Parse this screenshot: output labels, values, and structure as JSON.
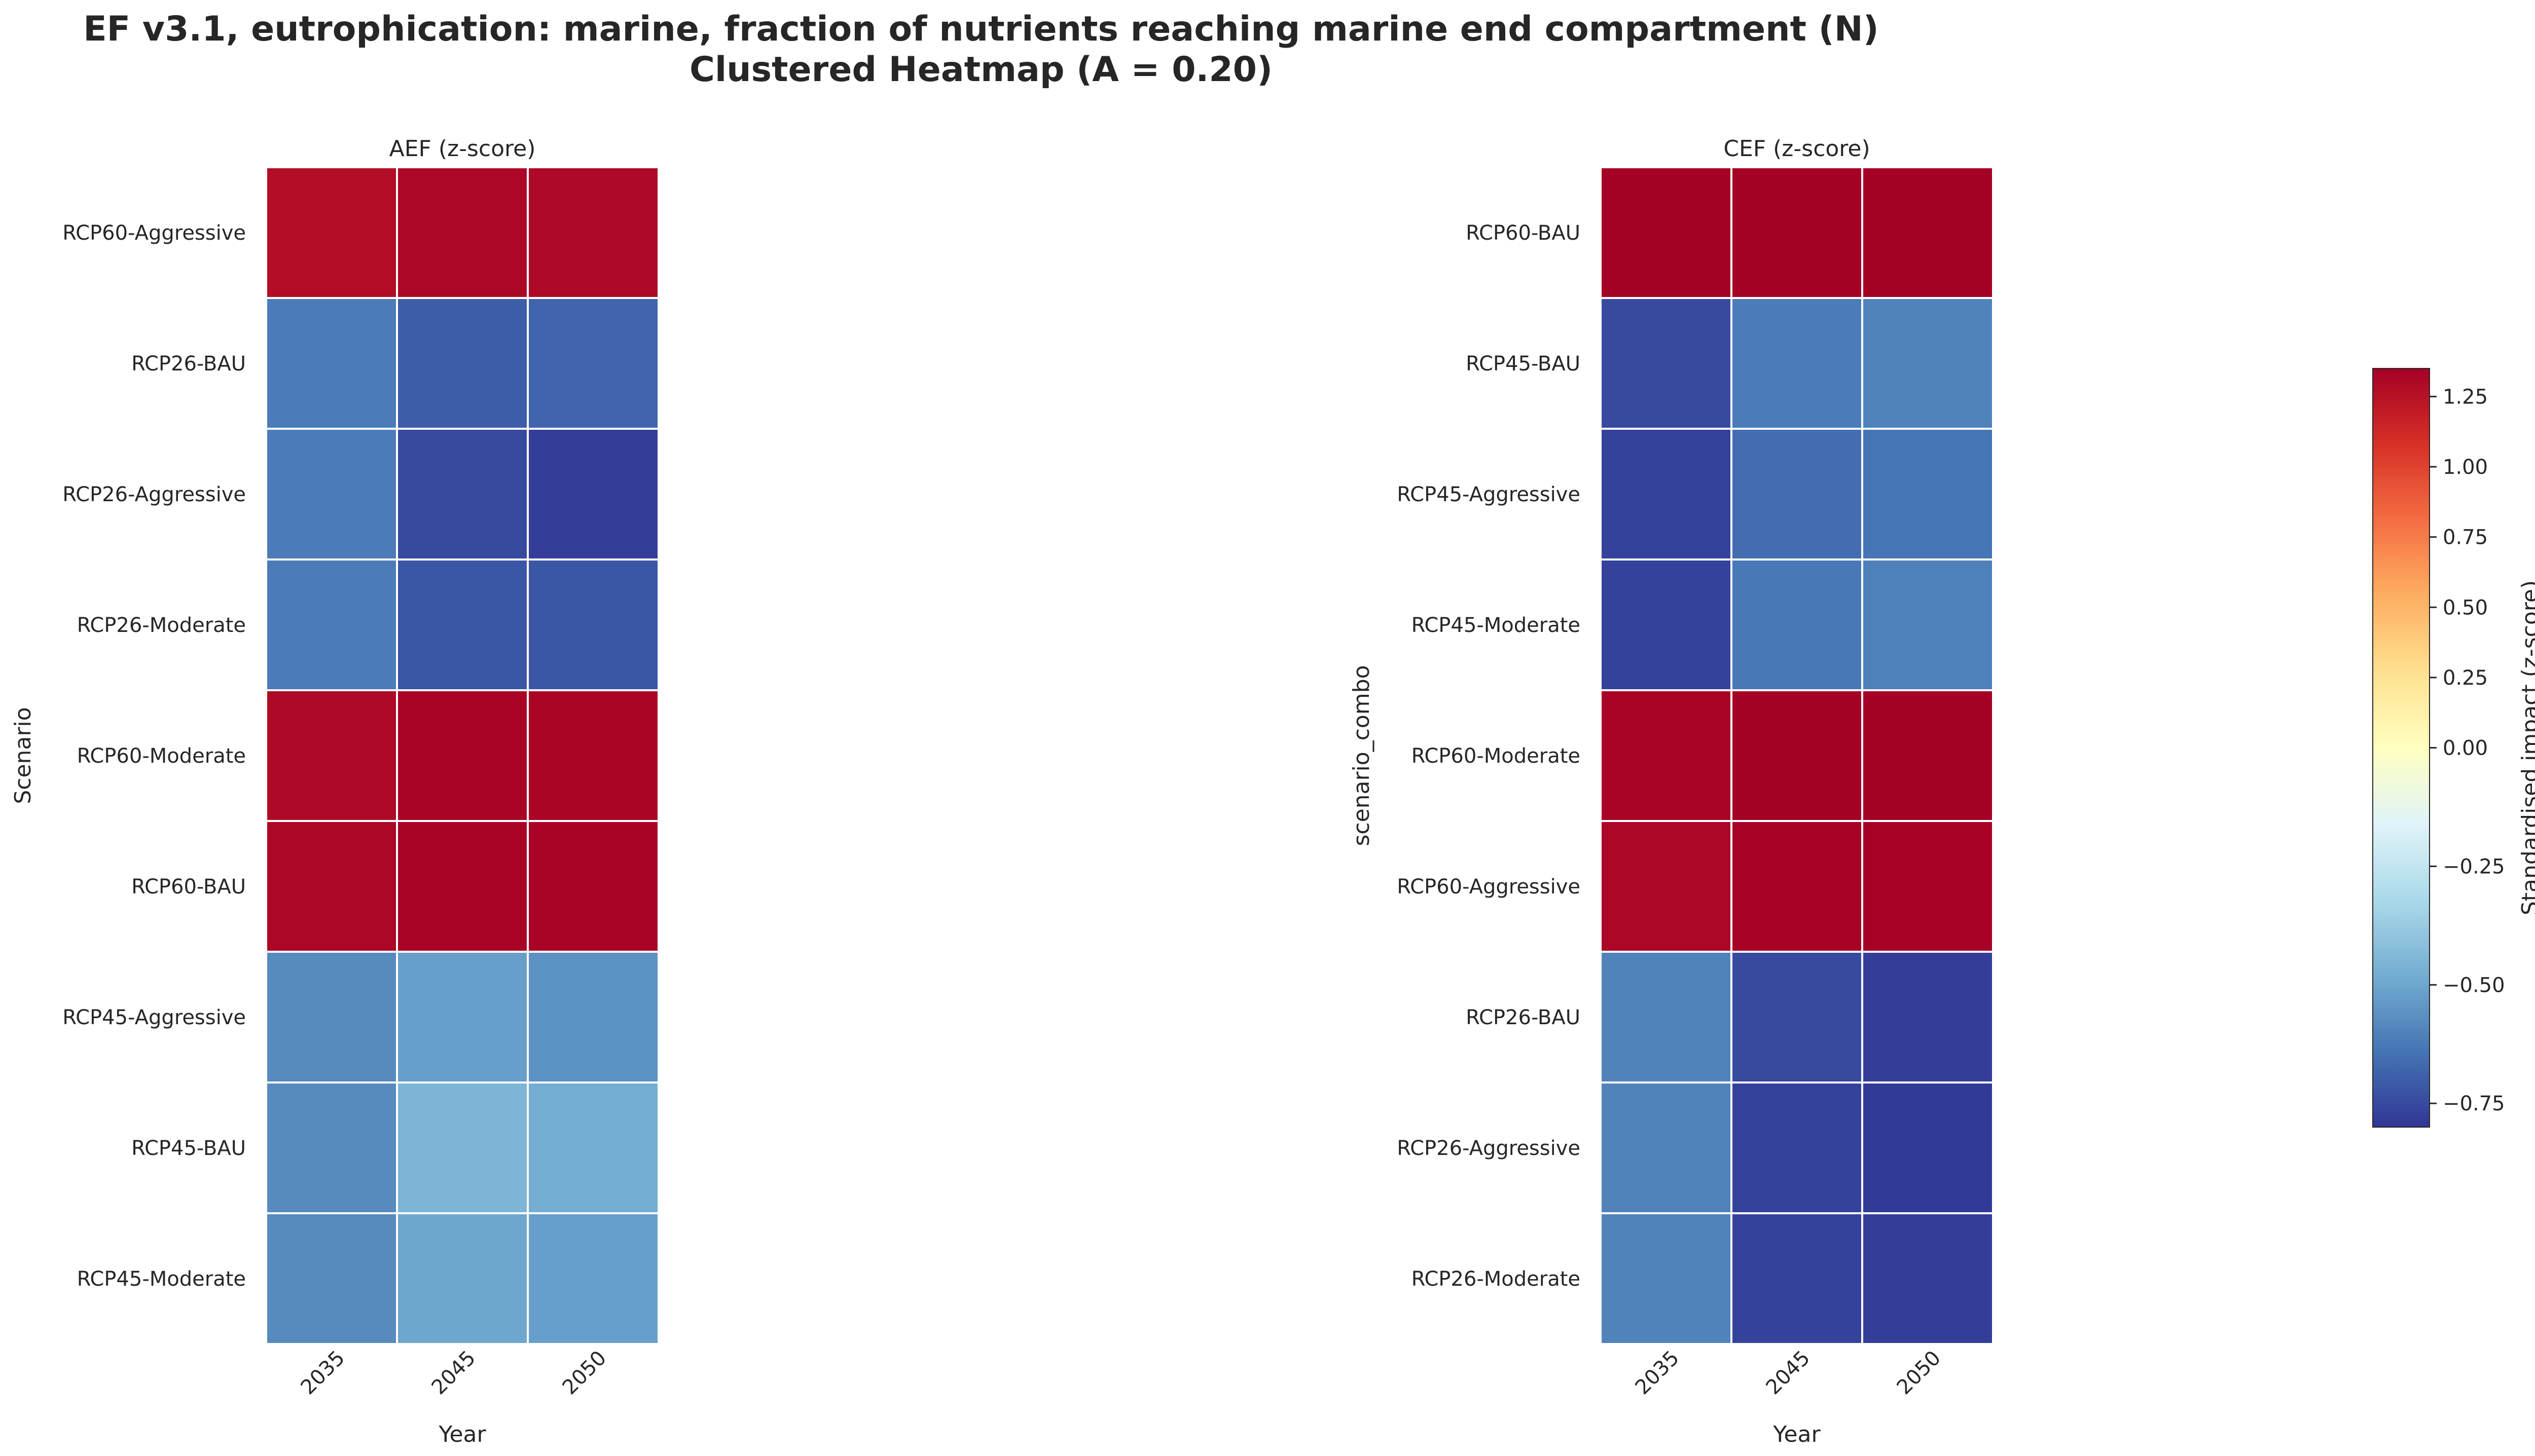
{
  "figure": {
    "title_line1": "EF v3.1, eutrophication: marine, fraction of nutrients reaching marine end compartment (N)",
    "title_line2": "Clustered Heatmap (A = 0.20)"
  },
  "colorbar": {
    "label": "Standardised impact (z-score)",
    "vmin": -0.8,
    "vmax": 1.35,
    "center": 0,
    "colormap": "RdYlBu_r (diverging, centered at 0)",
    "ticks": [
      -0.75,
      -0.5,
      -0.25,
      0.0,
      0.25,
      0.5,
      0.75,
      1.0,
      1.25
    ],
    "tick_labels": [
      "−0.75",
      "−0.50",
      "−0.25",
      "0.00",
      "0.25",
      "0.50",
      "0.75",
      "1.00",
      "1.25"
    ]
  },
  "chart_data": [
    {
      "type": "heatmap",
      "title": "AEF (z-score)",
      "xlabel": "Year",
      "ylabel": "Scenario",
      "x": [
        "2035",
        "2045",
        "2050"
      ],
      "y": [
        "RCP60-Aggressive",
        "RCP26-BAU",
        "RCP26-Aggressive",
        "RCP26-Moderate",
        "RCP60-Moderate",
        "RCP60-BAU",
        "RCP45-Aggressive",
        "RCP45-BAU",
        "RCP45-Moderate"
      ],
      "values": [
        [
          1.28,
          1.31,
          1.3
        ],
        [
          -0.62,
          -0.7,
          -0.68
        ],
        [
          -0.62,
          -0.75,
          -0.78
        ],
        [
          -0.62,
          -0.72,
          -0.72
        ],
        [
          1.3,
          1.33,
          1.32
        ],
        [
          1.31,
          1.33,
          1.33
        ],
        [
          -0.58,
          -0.52,
          -0.56
        ],
        [
          -0.58,
          -0.45,
          -0.48
        ],
        [
          -0.58,
          -0.5,
          -0.52
        ]
      ]
    },
    {
      "type": "heatmap",
      "title": "CEF (z-score)",
      "xlabel": "Year",
      "ylabel": "scenario_combo",
      "x": [
        "2035",
        "2045",
        "2050"
      ],
      "y": [
        "RCP60-BAU",
        "RCP45-BAU",
        "RCP45-Aggressive",
        "RCP45-Moderate",
        "RCP60-Moderate",
        "RCP60-Aggressive",
        "RCP26-BAU",
        "RCP26-Aggressive",
        "RCP26-Moderate"
      ],
      "values": [
        [
          1.36,
          1.37,
          1.37
        ],
        [
          -0.75,
          -0.62,
          -0.6
        ],
        [
          -0.77,
          -0.66,
          -0.64
        ],
        [
          -0.77,
          -0.63,
          -0.61
        ],
        [
          1.33,
          1.36,
          1.36
        ],
        [
          1.31,
          1.34,
          1.34
        ],
        [
          -0.6,
          -0.75,
          -0.78
        ],
        [
          -0.6,
          -0.77,
          -0.79
        ],
        [
          -0.6,
          -0.77,
          -0.78
        ]
      ]
    }
  ]
}
